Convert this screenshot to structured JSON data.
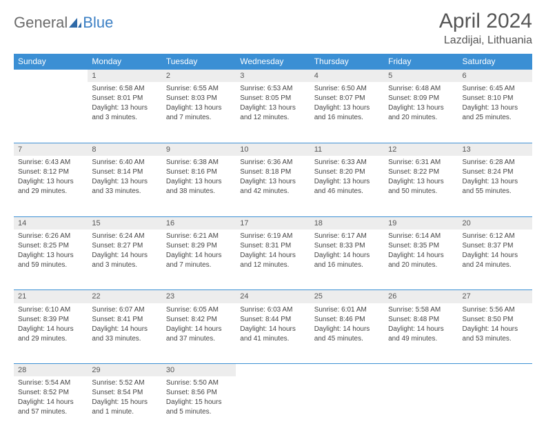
{
  "logo": {
    "part1": "General",
    "part2": "Blue"
  },
  "title": "April 2024",
  "location": "Lazdijai, Lithuania",
  "header_bg": "#3b8fd4",
  "daynum_bg": "#ededed",
  "days_of_week": [
    "Sunday",
    "Monday",
    "Tuesday",
    "Wednesday",
    "Thursday",
    "Friday",
    "Saturday"
  ],
  "weeks": [
    [
      null,
      {
        "n": "1",
        "sr": "Sunrise: 6:58 AM",
        "ss": "Sunset: 8:01 PM",
        "d1": "Daylight: 13 hours",
        "d2": "and 3 minutes."
      },
      {
        "n": "2",
        "sr": "Sunrise: 6:55 AM",
        "ss": "Sunset: 8:03 PM",
        "d1": "Daylight: 13 hours",
        "d2": "and 7 minutes."
      },
      {
        "n": "3",
        "sr": "Sunrise: 6:53 AM",
        "ss": "Sunset: 8:05 PM",
        "d1": "Daylight: 13 hours",
        "d2": "and 12 minutes."
      },
      {
        "n": "4",
        "sr": "Sunrise: 6:50 AM",
        "ss": "Sunset: 8:07 PM",
        "d1": "Daylight: 13 hours",
        "d2": "and 16 minutes."
      },
      {
        "n": "5",
        "sr": "Sunrise: 6:48 AM",
        "ss": "Sunset: 8:09 PM",
        "d1": "Daylight: 13 hours",
        "d2": "and 20 minutes."
      },
      {
        "n": "6",
        "sr": "Sunrise: 6:45 AM",
        "ss": "Sunset: 8:10 PM",
        "d1": "Daylight: 13 hours",
        "d2": "and 25 minutes."
      }
    ],
    [
      {
        "n": "7",
        "sr": "Sunrise: 6:43 AM",
        "ss": "Sunset: 8:12 PM",
        "d1": "Daylight: 13 hours",
        "d2": "and 29 minutes."
      },
      {
        "n": "8",
        "sr": "Sunrise: 6:40 AM",
        "ss": "Sunset: 8:14 PM",
        "d1": "Daylight: 13 hours",
        "d2": "and 33 minutes."
      },
      {
        "n": "9",
        "sr": "Sunrise: 6:38 AM",
        "ss": "Sunset: 8:16 PM",
        "d1": "Daylight: 13 hours",
        "d2": "and 38 minutes."
      },
      {
        "n": "10",
        "sr": "Sunrise: 6:36 AM",
        "ss": "Sunset: 8:18 PM",
        "d1": "Daylight: 13 hours",
        "d2": "and 42 minutes."
      },
      {
        "n": "11",
        "sr": "Sunrise: 6:33 AM",
        "ss": "Sunset: 8:20 PM",
        "d1": "Daylight: 13 hours",
        "d2": "and 46 minutes."
      },
      {
        "n": "12",
        "sr": "Sunrise: 6:31 AM",
        "ss": "Sunset: 8:22 PM",
        "d1": "Daylight: 13 hours",
        "d2": "and 50 minutes."
      },
      {
        "n": "13",
        "sr": "Sunrise: 6:28 AM",
        "ss": "Sunset: 8:24 PM",
        "d1": "Daylight: 13 hours",
        "d2": "and 55 minutes."
      }
    ],
    [
      {
        "n": "14",
        "sr": "Sunrise: 6:26 AM",
        "ss": "Sunset: 8:25 PM",
        "d1": "Daylight: 13 hours",
        "d2": "and 59 minutes."
      },
      {
        "n": "15",
        "sr": "Sunrise: 6:24 AM",
        "ss": "Sunset: 8:27 PM",
        "d1": "Daylight: 14 hours",
        "d2": "and 3 minutes."
      },
      {
        "n": "16",
        "sr": "Sunrise: 6:21 AM",
        "ss": "Sunset: 8:29 PM",
        "d1": "Daylight: 14 hours",
        "d2": "and 7 minutes."
      },
      {
        "n": "17",
        "sr": "Sunrise: 6:19 AM",
        "ss": "Sunset: 8:31 PM",
        "d1": "Daylight: 14 hours",
        "d2": "and 12 minutes."
      },
      {
        "n": "18",
        "sr": "Sunrise: 6:17 AM",
        "ss": "Sunset: 8:33 PM",
        "d1": "Daylight: 14 hours",
        "d2": "and 16 minutes."
      },
      {
        "n": "19",
        "sr": "Sunrise: 6:14 AM",
        "ss": "Sunset: 8:35 PM",
        "d1": "Daylight: 14 hours",
        "d2": "and 20 minutes."
      },
      {
        "n": "20",
        "sr": "Sunrise: 6:12 AM",
        "ss": "Sunset: 8:37 PM",
        "d1": "Daylight: 14 hours",
        "d2": "and 24 minutes."
      }
    ],
    [
      {
        "n": "21",
        "sr": "Sunrise: 6:10 AM",
        "ss": "Sunset: 8:39 PM",
        "d1": "Daylight: 14 hours",
        "d2": "and 29 minutes."
      },
      {
        "n": "22",
        "sr": "Sunrise: 6:07 AM",
        "ss": "Sunset: 8:41 PM",
        "d1": "Daylight: 14 hours",
        "d2": "and 33 minutes."
      },
      {
        "n": "23",
        "sr": "Sunrise: 6:05 AM",
        "ss": "Sunset: 8:42 PM",
        "d1": "Daylight: 14 hours",
        "d2": "and 37 minutes."
      },
      {
        "n": "24",
        "sr": "Sunrise: 6:03 AM",
        "ss": "Sunset: 8:44 PM",
        "d1": "Daylight: 14 hours",
        "d2": "and 41 minutes."
      },
      {
        "n": "25",
        "sr": "Sunrise: 6:01 AM",
        "ss": "Sunset: 8:46 PM",
        "d1": "Daylight: 14 hours",
        "d2": "and 45 minutes."
      },
      {
        "n": "26",
        "sr": "Sunrise: 5:58 AM",
        "ss": "Sunset: 8:48 PM",
        "d1": "Daylight: 14 hours",
        "d2": "and 49 minutes."
      },
      {
        "n": "27",
        "sr": "Sunrise: 5:56 AM",
        "ss": "Sunset: 8:50 PM",
        "d1": "Daylight: 14 hours",
        "d2": "and 53 minutes."
      }
    ],
    [
      {
        "n": "28",
        "sr": "Sunrise: 5:54 AM",
        "ss": "Sunset: 8:52 PM",
        "d1": "Daylight: 14 hours",
        "d2": "and 57 minutes."
      },
      {
        "n": "29",
        "sr": "Sunrise: 5:52 AM",
        "ss": "Sunset: 8:54 PM",
        "d1": "Daylight: 15 hours",
        "d2": "and 1 minute."
      },
      {
        "n": "30",
        "sr": "Sunrise: 5:50 AM",
        "ss": "Sunset: 8:56 PM",
        "d1": "Daylight: 15 hours",
        "d2": "and 5 minutes."
      },
      null,
      null,
      null,
      null
    ]
  ]
}
